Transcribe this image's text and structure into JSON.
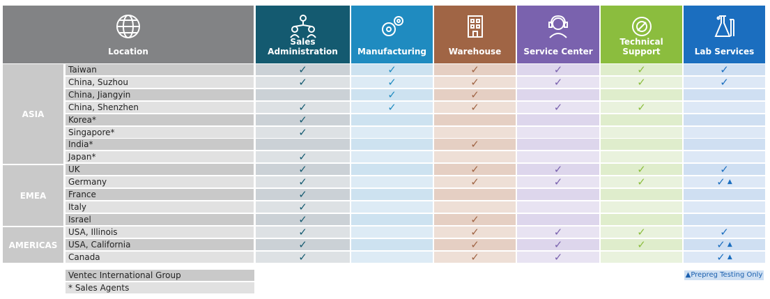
{
  "headers": {
    "location": "Location",
    "sales": "Sales Administration",
    "mfg": "Manufacturing",
    "warehouse": "Warehouse",
    "service": "Service Center",
    "tech": "Technical Support",
    "lab": "Lab Services"
  },
  "colors": {
    "location": "#828385",
    "sales": "#145a70",
    "mfg": "#1f8bc0",
    "warehouse": "#a06545",
    "service": "#7a62ae",
    "tech": "#8bbd3e",
    "lab": "#1b6ebf"
  },
  "regions": [
    {
      "name": "ASIA",
      "rows": [
        0,
        7
      ]
    },
    {
      "name": "EMEA",
      "rows": [
        8,
        12
      ]
    },
    {
      "name": "AMERICAS",
      "rows": [
        13,
        15
      ]
    }
  ],
  "rows": [
    {
      "loc": "Taiwan",
      "s": 1,
      "m": 1,
      "w": 1,
      "v": 1,
      "t": 1,
      "l": "c"
    },
    {
      "loc": "China, Suzhou",
      "s": 1,
      "m": 1,
      "w": 1,
      "v": 1,
      "t": 1,
      "l": "c"
    },
    {
      "loc": "China, Jiangyin",
      "s": 0,
      "m": 1,
      "w": 1,
      "v": 0,
      "t": 0,
      "l": ""
    },
    {
      "loc": "China, Shenzhen",
      "s": 1,
      "m": 1,
      "w": 1,
      "v": 1,
      "t": 1,
      "l": ""
    },
    {
      "loc": "Korea*",
      "s": 1,
      "m": 0,
      "w": 0,
      "v": 0,
      "t": 0,
      "l": ""
    },
    {
      "loc": "Singapore*",
      "s": 1,
      "m": 0,
      "w": 0,
      "v": 0,
      "t": 0,
      "l": ""
    },
    {
      "loc": "India*",
      "s": 0,
      "m": 0,
      "w": 1,
      "v": 0,
      "t": 0,
      "l": ""
    },
    {
      "loc": "Japan*",
      "s": 1,
      "m": 0,
      "w": 0,
      "v": 0,
      "t": 0,
      "l": ""
    },
    {
      "loc": "UK",
      "s": 1,
      "m": 0,
      "w": 1,
      "v": 1,
      "t": 1,
      "l": "c"
    },
    {
      "loc": "Germany",
      "s": 1,
      "m": 0,
      "w": 1,
      "v": 1,
      "t": 1,
      "l": "ct"
    },
    {
      "loc": "France",
      "s": 1,
      "m": 0,
      "w": 0,
      "v": 0,
      "t": 0,
      "l": ""
    },
    {
      "loc": "Italy",
      "s": 1,
      "m": 0,
      "w": 0,
      "v": 0,
      "t": 0,
      "l": ""
    },
    {
      "loc": "Israel",
      "s": 1,
      "m": 0,
      "w": 1,
      "v": 0,
      "t": 0,
      "l": ""
    },
    {
      "loc": "USA, Illinois",
      "s": 1,
      "m": 0,
      "w": 1,
      "v": 1,
      "t": 1,
      "l": "c"
    },
    {
      "loc": "USA, California",
      "s": 1,
      "m": 0,
      "w": 1,
      "v": 1,
      "t": 1,
      "l": "ct"
    },
    {
      "loc": "Canada",
      "s": 1,
      "m": 0,
      "w": 1,
      "v": 1,
      "t": 0,
      "l": "ct"
    }
  ],
  "check_symbol": "✓",
  "triangle_symbol": "▲",
  "notes": {
    "ventec": "Ventec International Group",
    "agents": "* Sales Agents",
    "prepreg": "▲Prepreg Testing Only"
  }
}
